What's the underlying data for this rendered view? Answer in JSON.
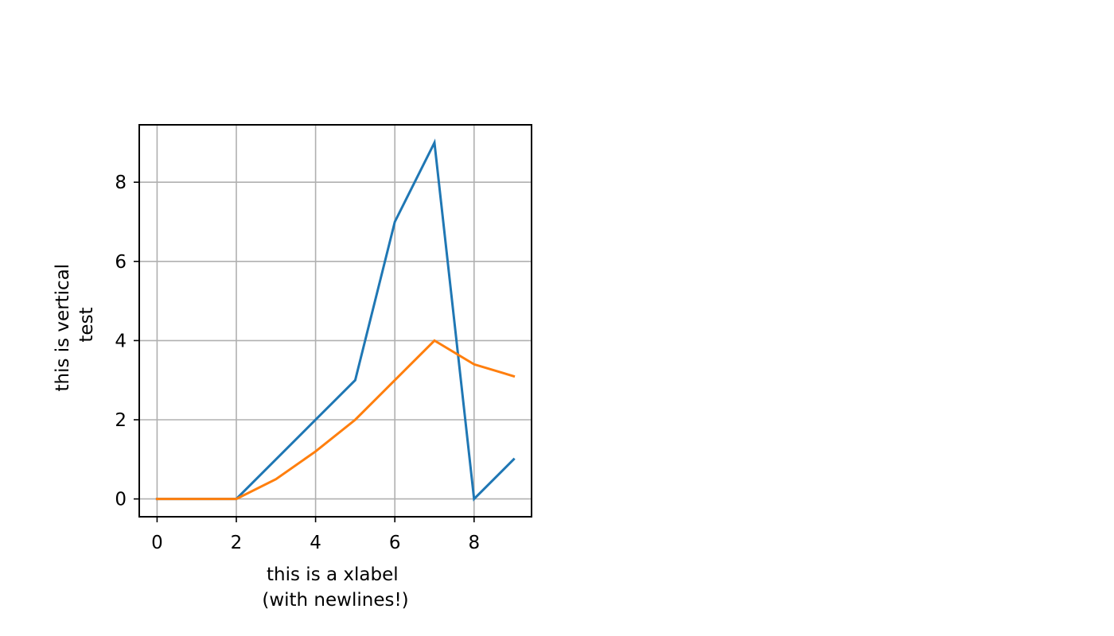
{
  "chart_data": {
    "type": "line",
    "title": "",
    "xlabel_lines": [
      "this is a xlabel",
      "(with newlines!)"
    ],
    "ylabel_lines": [
      "this is vertical",
      "test"
    ],
    "x": [
      0,
      1,
      2,
      3,
      4,
      5,
      6,
      7,
      8,
      9
    ],
    "series": [
      {
        "values": [
          0,
          0,
          0,
          1,
          2,
          3,
          7,
          9,
          0,
          1
        ],
        "color": "#1f77b4"
      },
      {
        "values": [
          0,
          0,
          0,
          0.5,
          1.2,
          2,
          3,
          4,
          3.4,
          3.1
        ],
        "color": "#ff7f0e"
      }
    ],
    "xlim": [
      -0.45,
      9.45
    ],
    "ylim": [
      -0.45,
      9.45
    ],
    "xticks": [
      0,
      2,
      4,
      6,
      8
    ],
    "xtick_labels": [
      "0",
      "2",
      "4",
      "6",
      "8"
    ],
    "yticks": [
      0,
      2,
      4,
      6,
      8
    ],
    "ytick_labels": [
      "0",
      "2",
      "4",
      "6",
      "8"
    ],
    "grid": true,
    "grid_color": "#b0b0b0",
    "legend": false
  }
}
